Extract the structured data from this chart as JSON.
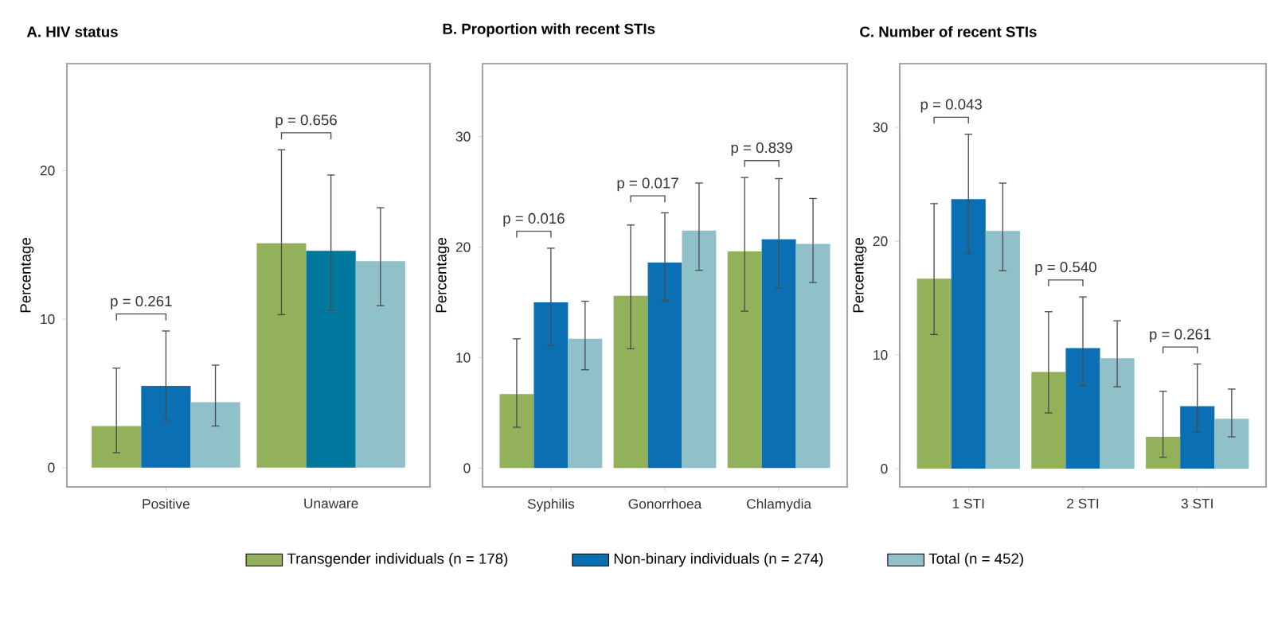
{
  "chart_data": [
    {
      "type": "bar",
      "title": "A. HIV status",
      "ylabel": "Percentage",
      "categories": [
        "Positive",
        "Unaware"
      ],
      "ylim": [
        -1.3,
        27.2
      ],
      "yticks": [
        0,
        10,
        20
      ],
      "legend": "bottom",
      "series": [
        {
          "name": "Transgender individuals (n = 178)",
          "color": "#93b05a",
          "values": [
            2.8,
            15.1
          ],
          "errors": [
            [
              1.0,
              6.7
            ],
            [
              10.3,
              21.4
            ]
          ]
        },
        {
          "name": "Non-binary individuals (n = 274)",
          "color": "#0a6fb3",
          "colors": [
            "#0a6fb3",
            "#00789e"
          ],
          "values": [
            5.5,
            14.6
          ],
          "errors": [
            [
              3.2,
              9.2
            ],
            [
              10.6,
              19.7
            ]
          ]
        },
        {
          "name": "Total (n = 452)",
          "color": "#90c0c8",
          "values": [
            4.4,
            13.9
          ],
          "errors": [
            [
              2.8,
              6.9
            ],
            [
              10.9,
              17.5
            ]
          ]
        }
      ],
      "annotations": [
        "p = 0.261",
        "p = 0.656"
      ]
    },
    {
      "type": "bar",
      "title": "B. Proportion with recent STIs",
      "ylabel": "Percentage",
      "categories": [
        "Syphilis",
        "Gonorrhoea",
        "Chlamydia"
      ],
      "ylim": [
        -1.7,
        36.6
      ],
      "yticks": [
        0,
        10,
        20,
        30
      ],
      "series": [
        {
          "color": "#93b05a",
          "values": [
            6.7,
            15.6,
            19.6
          ],
          "errors": [
            [
              3.7,
              11.7
            ],
            [
              10.8,
              22.0
            ],
            [
              14.2,
              26.3
            ]
          ]
        },
        {
          "color": "#0a6fb3",
          "values": [
            15.0,
            18.6,
            20.7
          ],
          "errors": [
            [
              11.1,
              19.9
            ],
            [
              15.1,
              23.1
            ],
            [
              16.3,
              26.2
            ]
          ]
        },
        {
          "color": "#90c0c8",
          "values": [
            11.7,
            21.5,
            20.3
          ],
          "errors": [
            [
              8.9,
              15.1
            ],
            [
              17.9,
              25.8
            ],
            [
              16.8,
              24.4
            ]
          ]
        }
      ],
      "annotations": [
        "p = 0.016",
        "p = 0.017",
        "p = 0.839"
      ]
    },
    {
      "type": "bar",
      "title": "C. Number of recent STIs",
      "ylabel": "Percentage",
      "categories": [
        "1 STI",
        "2 STI",
        "3 STI"
      ],
      "ylim": [
        -1.6,
        35.6
      ],
      "yticks": [
        0,
        10,
        20,
        30
      ],
      "series": [
        {
          "color": "#93b05a",
          "values": [
            16.7,
            8.5,
            2.8
          ],
          "errors": [
            [
              11.8,
              23.3
            ],
            [
              4.9,
              13.8
            ],
            [
              1.0,
              6.8
            ]
          ]
        },
        {
          "color": "#0a6fb3",
          "values": [
            23.7,
            10.6,
            5.5
          ],
          "errors": [
            [
              18.9,
              29.4
            ],
            [
              7.3,
              15.1
            ],
            [
              3.2,
              9.2
            ]
          ]
        },
        {
          "color": "#90c0c8",
          "values": [
            20.9,
            9.7,
            4.4
          ],
          "errors": [
            [
              17.4,
              25.1
            ],
            [
              7.2,
              13.0
            ],
            [
              2.8,
              7.0
            ]
          ]
        }
      ],
      "annotations": [
        "p = 0.043",
        "p = 0.540",
        "p = 0.261"
      ]
    }
  ]
}
